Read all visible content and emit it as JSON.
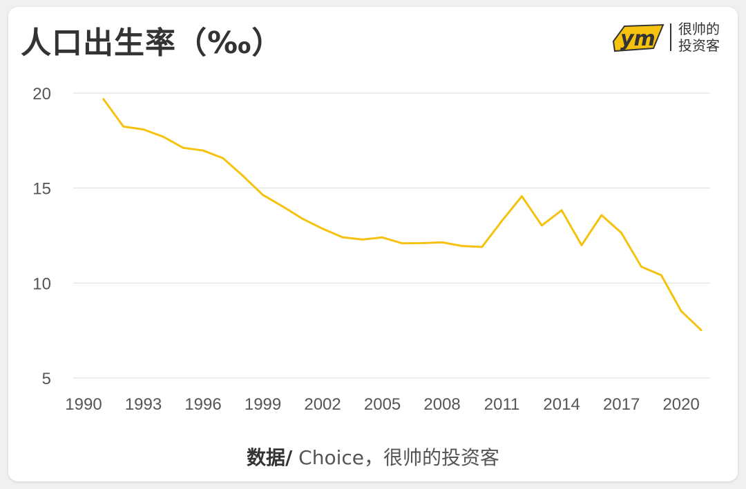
{
  "title": "人口出生率（‰）",
  "logo": {
    "mark_text": "ym",
    "line1": "很帅的",
    "line2": "投资客"
  },
  "source": {
    "label": "数据/",
    "text": " Choice，很帅的投资客"
  },
  "colors": {
    "line": "#f5c20f",
    "grid": "#dddddd",
    "text": "#333333",
    "card": "#ffffff",
    "background": "#f0f0f0"
  },
  "chart_data": {
    "type": "line",
    "title": "人口出生率（‰）",
    "xlabel": "",
    "ylabel": "",
    "xlim": [
      1990,
      2021
    ],
    "ylim": [
      5,
      20
    ],
    "grid": true,
    "y_ticks": [
      5,
      10,
      15,
      20
    ],
    "x_ticks": [
      1990,
      1993,
      1996,
      1999,
      2002,
      2005,
      2008,
      2011,
      2014,
      2017,
      2020
    ],
    "series": [
      {
        "x": [
          1991,
          1992,
          1993,
          1994,
          1995,
          1996,
          1997,
          1998,
          1999,
          2000,
          2001,
          2002,
          2003,
          2004,
          2005,
          2006,
          2007,
          2008,
          2009,
          2010,
          2011,
          2012,
          2013,
          2014,
          2015,
          2016,
          2017,
          2018,
          2019,
          2020,
          2021
        ],
        "values": [
          19.68,
          18.24,
          18.09,
          17.7,
          17.12,
          16.98,
          16.57,
          15.64,
          14.64,
          14.03,
          13.38,
          12.86,
          12.41,
          12.29,
          12.4,
          12.09,
          12.1,
          12.14,
          11.95,
          11.9,
          13.27,
          14.57,
          13.03,
          13.83,
          11.99,
          13.57,
          12.64,
          10.86,
          10.41,
          8.52,
          7.52
        ]
      }
    ]
  }
}
